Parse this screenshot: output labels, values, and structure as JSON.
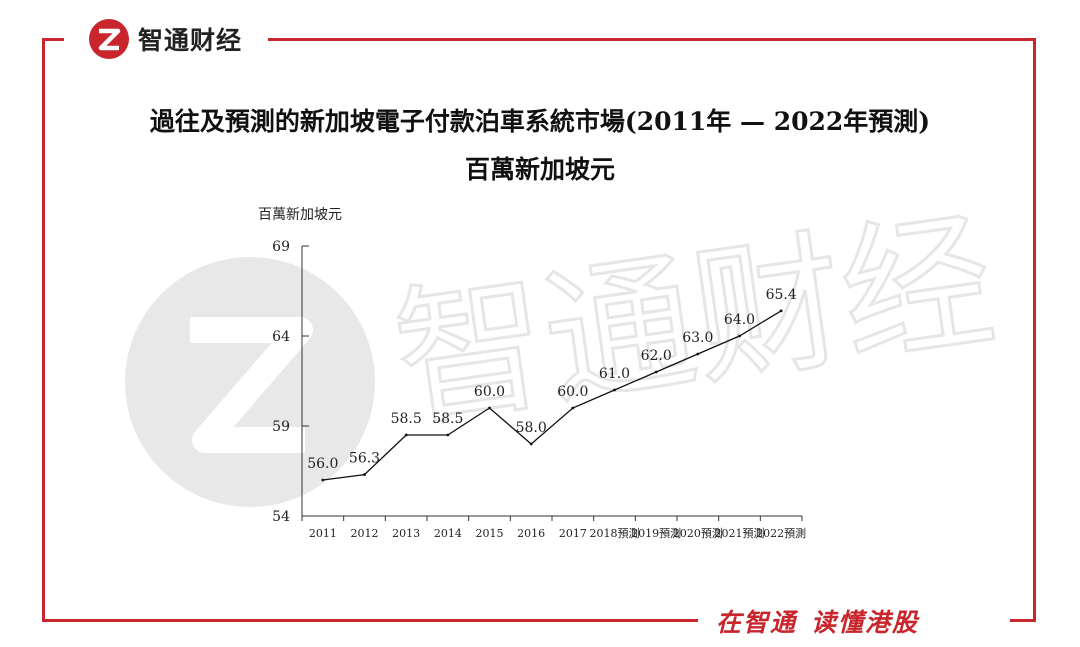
{
  "logo": {
    "name": "智通财经"
  },
  "slogan": {
    "part1": "在智通",
    "part2": "读懂港股"
  },
  "colors": {
    "brand": "#c8252c",
    "line": "#111111",
    "watermark": "#e6e6e6"
  },
  "chart_data": {
    "type": "line",
    "title": "過往及預測的新加坡電子付款泊車系統市場(2011年 — 2022年預測)",
    "subtitle": "百萬新加坡元",
    "ylabel": "百萬新加坡元",
    "xlabel": "",
    "categories": [
      "2011",
      "2012",
      "2013",
      "2014",
      "2015",
      "2016",
      "2017",
      "2018預測",
      "2019預測",
      "2020預測",
      "2021預測",
      "2022預測"
    ],
    "series": [
      {
        "values": [
          56.0,
          56.3,
          58.5,
          58.5,
          60.0,
          58.0,
          60.0,
          61.0,
          62.0,
          63.0,
          64.0,
          65.4
        ]
      }
    ],
    "data_labels": [
      "56.0",
      "56.3",
      "58.5",
      "58.5",
      "60.0",
      "58.0",
      "60.0",
      "61.0",
      "62.0",
      "63.0",
      "64.0",
      "65.4"
    ],
    "yticks": [
      54,
      59,
      64,
      69
    ],
    "ylim": [
      54,
      69
    ],
    "grid": false,
    "legend": "none"
  }
}
